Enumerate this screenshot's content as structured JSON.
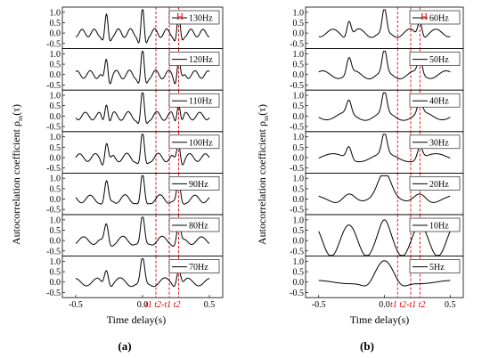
{
  "panels": [
    {
      "id": "a",
      "label": "(a)",
      "ylabel": "Autocorrelation coefficient ρ",
      "ylabel_sub": "ss",
      "ylabel_tail": "(τ)",
      "xlabel": "Time delay(s)",
      "h_label": "H",
      "marker_labels": [
        "t",
        "t",
        "t",
        "t",
        "t",
        "t"
      ],
      "marker_subs": [
        "1",
        "2",
        "-t",
        "1",
        "",
        "2"
      ],
      "marker_label_text": "t1 t2-t1 t2"
    },
    {
      "id": "b",
      "label": "(b)",
      "ylabel": "Autocorrelation coefficient ρ",
      "ylabel_sub": "ss",
      "ylabel_tail": "(τ)",
      "xlabel": "Time delay(s)",
      "h_label": "H",
      "marker_label_text": "t1 t2-t1 t2"
    }
  ],
  "chart_data": [
    {
      "type": "line",
      "panel": "a",
      "xlim": [
        -0.6,
        0.6
      ],
      "ylim": [
        -0.75,
        1.25
      ],
      "xticks": [
        "-0.5",
        "0.0",
        "0.5"
      ],
      "yticks": [
        "1.0",
        "0.5",
        "0.0",
        "-0.5"
      ],
      "markers_x": [
        0.1,
        0.2,
        0.27
      ],
      "marker_color": "#e00000",
      "series": [
        {
          "name": "130Hz",
          "freq": 130,
          "peaks": [
            {
              "x": 0.0,
              "y": 1.0
            },
            {
              "x": -0.27,
              "y": 0.72
            },
            {
              "x": 0.27,
              "y": 0.72
            }
          ]
        },
        {
          "name": "120Hz",
          "freq": 120,
          "peaks": [
            {
              "x": 0.0,
              "y": 1.0
            },
            {
              "x": -0.27,
              "y": 0.72
            },
            {
              "x": 0.27,
              "y": 0.72
            }
          ]
        },
        {
          "name": "110Hz",
          "freq": 110,
          "peaks": [
            {
              "x": 0.0,
              "y": 1.0
            },
            {
              "x": -0.27,
              "y": 0.72
            },
            {
              "x": 0.27,
              "y": 0.72
            }
          ]
        },
        {
          "name": "100Hz",
          "freq": 100,
          "peaks": [
            {
              "x": 0.0,
              "y": 1.0
            },
            {
              "x": -0.27,
              "y": 0.72
            },
            {
              "x": 0.27,
              "y": 0.72
            }
          ]
        },
        {
          "name": "90Hz",
          "freq": 90,
          "peaks": [
            {
              "x": 0.0,
              "y": 1.0
            },
            {
              "x": -0.27,
              "y": 0.7
            },
            {
              "x": 0.27,
              "y": 0.7
            }
          ]
        },
        {
          "name": "80Hz",
          "freq": 80,
          "peaks": [
            {
              "x": 0.0,
              "y": 1.0
            },
            {
              "x": -0.27,
              "y": 0.7
            },
            {
              "x": 0.27,
              "y": 0.7
            }
          ]
        },
        {
          "name": "70Hz",
          "freq": 70,
          "peaks": [
            {
              "x": 0.0,
              "y": 1.0
            },
            {
              "x": -0.27,
              "y": 0.7
            },
            {
              "x": 0.27,
              "y": 0.7
            }
          ]
        }
      ]
    },
    {
      "type": "line",
      "panel": "b",
      "xlim": [
        -0.6,
        0.6
      ],
      "ylim": [
        -0.75,
        1.25
      ],
      "xticks": [
        "-0.5",
        "0.0",
        "0.5"
      ],
      "yticks": [
        "1.0",
        "0.5",
        "0.0",
        "-0.5"
      ],
      "markers_x": [
        0.1,
        0.2,
        0.27
      ],
      "marker_color": "#e00000",
      "series": [
        {
          "name": "60Hz",
          "freq": 60,
          "peaks": [
            {
              "x": 0.0,
              "y": 1.0
            },
            {
              "x": -0.27,
              "y": 0.7
            },
            {
              "x": 0.27,
              "y": 0.7
            }
          ]
        },
        {
          "name": "50Hz",
          "freq": 50,
          "peaks": [
            {
              "x": 0.0,
              "y": 1.0
            },
            {
              "x": -0.27,
              "y": 0.7
            },
            {
              "x": 0.27,
              "y": 0.7
            }
          ]
        },
        {
          "name": "40Hz",
          "freq": 40,
          "peaks": [
            {
              "x": 0.0,
              "y": 1.0
            },
            {
              "x": -0.27,
              "y": 0.6
            },
            {
              "x": 0.27,
              "y": 0.6
            }
          ]
        },
        {
          "name": "30Hz",
          "freq": 30,
          "peaks": [
            {
              "x": 0.0,
              "y": 1.0
            },
            {
              "x": -0.27,
              "y": 0.6
            },
            {
              "x": 0.27,
              "y": 0.6
            }
          ]
        },
        {
          "name": "20Hz",
          "freq": 20,
          "peaks": [
            {
              "x": 0.0,
              "y": 1.0
            },
            {
              "x": -0.27,
              "y": 0.5
            },
            {
              "x": 0.27,
              "y": 0.5
            }
          ]
        },
        {
          "name": "10Hz",
          "freq": 10,
          "peaks": [
            {
              "x": 0.0,
              "y": 1.0
            },
            {
              "x": -0.27,
              "y": 0.3
            },
            {
              "x": 0.27,
              "y": 0.3
            }
          ]
        },
        {
          "name": "5Hz",
          "freq": 5,
          "peaks": [
            {
              "x": 0.0,
              "y": 1.0
            }
          ]
        }
      ]
    }
  ]
}
